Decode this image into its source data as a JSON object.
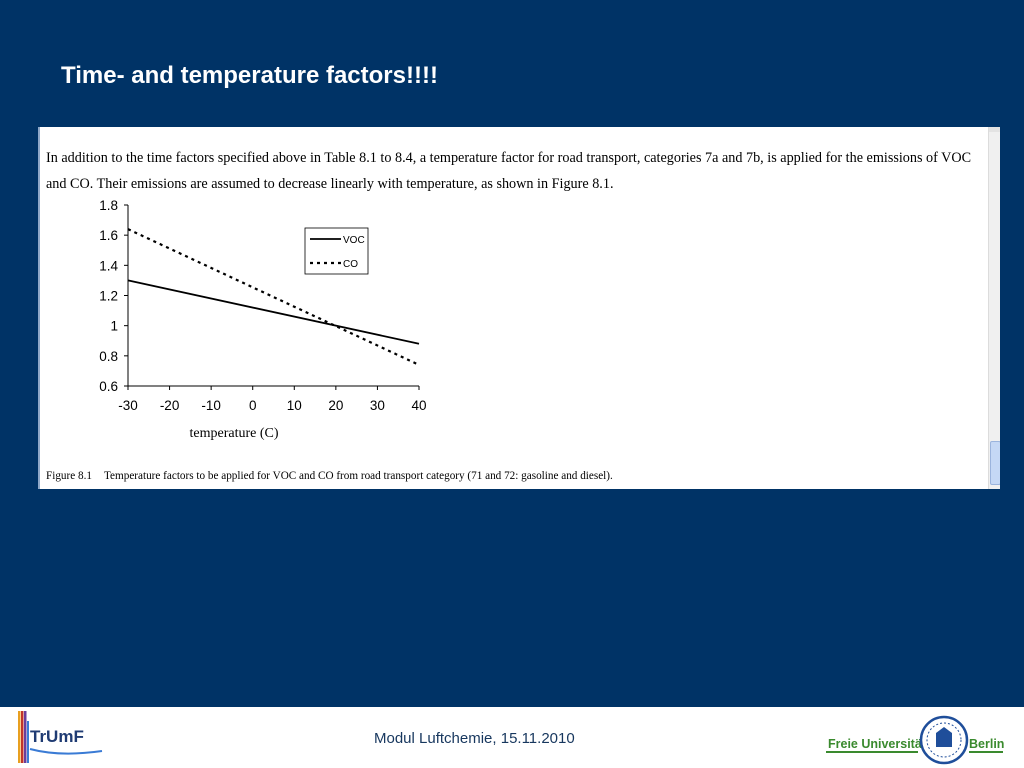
{
  "slide": {
    "title": "Time- and temperature factors!!!!",
    "footer_text": "Modul Luftchemie, 15.11.2010"
  },
  "document": {
    "paragraph": "In addition to the time factors specified above in Table 8.1 to 8.4, a temperature factor for road transport, categories 7a and 7b, is applied for the emissions of VOC and CO. Their emissions are assumed to decrease linearly with temperature, as shown in Figure 8.1.",
    "caption_number": "Figure 8.1",
    "caption_text": "Temperature factors to be applied for VOC and CO from road transport category (71 and 72: gasoline and diesel)."
  },
  "logos": {
    "left": "TrUmF",
    "right_name": "Freie Universität",
    "right_city": "Berlin"
  },
  "colors": {
    "background": "#003366",
    "footer_text": "#17375e",
    "fu_green": "#3a8a2e",
    "fu_blue": "#1f4e9a"
  },
  "chart_data": {
    "type": "line",
    "xlabel": "temperature (C)",
    "ylabel": "",
    "xlim": [
      -30,
      40
    ],
    "ylim": [
      0.6,
      1.8
    ],
    "xticks": [
      "-30",
      "-20",
      "-10",
      "0",
      "10",
      "20",
      "30",
      "40"
    ],
    "yticks": [
      "0.6",
      "0.8",
      "1",
      "1.2",
      "1.4",
      "1.6",
      "1.8"
    ],
    "legend_position": "top-right",
    "series": [
      {
        "name": "VOC",
        "style": "solid",
        "x": [
          -30,
          40
        ],
        "y": [
          1.3,
          0.88
        ]
      },
      {
        "name": "CO",
        "style": "dotted",
        "x": [
          -30,
          40
        ],
        "y": [
          1.64,
          0.74
        ]
      }
    ]
  }
}
